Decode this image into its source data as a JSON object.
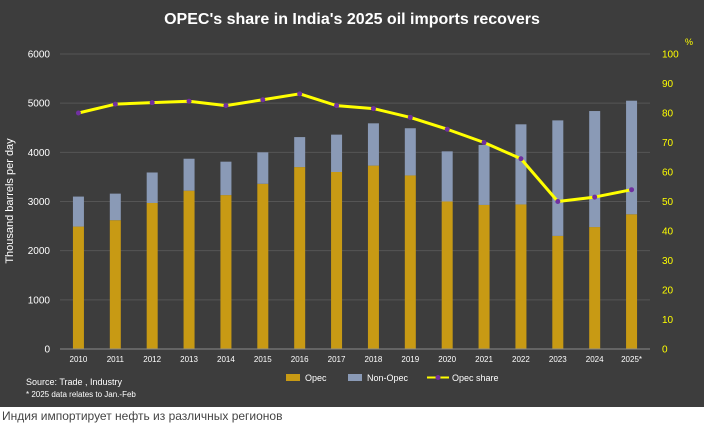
{
  "caption": "Индия импортирует нефть из различных регионов",
  "colors": {
    "background": "#3d3d3d",
    "opec": "#c89a14",
    "non_opec": "#8a9ab6",
    "share_line": "#ffff00",
    "marker": "#7030a0",
    "text": "#ffffff",
    "right_axis": "#ffff00"
  },
  "chart_data": {
    "type": "bar",
    "stacked": true,
    "title": "OPEC's share in India's 2025 oil imports recovers",
    "ylabel": "Thousand barrels per day",
    "y2_unit": "%",
    "categories": [
      "2010",
      "2011",
      "2012",
      "2013",
      "2014",
      "2015",
      "2016",
      "2017",
      "2018",
      "2019",
      "2020",
      "2021",
      "2022",
      "2023",
      "2024",
      "2025*"
    ],
    "ylim": [
      0,
      6000
    ],
    "y_ticks": [
      "0",
      "1000",
      "2000",
      "3000",
      "4000",
      "5000",
      "6000"
    ],
    "y2lim": [
      0,
      100
    ],
    "y2_ticks": [
      "0",
      "10",
      "20",
      "30",
      "40",
      "50",
      "60",
      "70",
      "80",
      "90",
      "100"
    ],
    "series": [
      {
        "name": "Opec",
        "kind": "bar",
        "values": [
          2490,
          2620,
          2970,
          3220,
          3130,
          3360,
          3700,
          3600,
          3730,
          3530,
          3000,
          2930,
          2940,
          2300,
          2480,
          2740
        ]
      },
      {
        "name": "Non-Opec",
        "kind": "bar",
        "values": [
          610,
          540,
          620,
          650,
          680,
          640,
          610,
          760,
          860,
          960,
          1020,
          1220,
          1630,
          2350,
          2360,
          2310
        ]
      },
      {
        "name": "Opec share",
        "kind": "line",
        "axis": "right",
        "values": [
          80,
          83,
          83.5,
          84,
          82.5,
          84.5,
          86.5,
          82.5,
          81.5,
          78.5,
          74.5,
          70,
          64.5,
          50,
          51.5,
          54
        ]
      }
    ],
    "legend_position": "bottom",
    "source": "Source: Trade , Industry",
    "note": "* 2025 data relates to Jan.-Feb"
  }
}
